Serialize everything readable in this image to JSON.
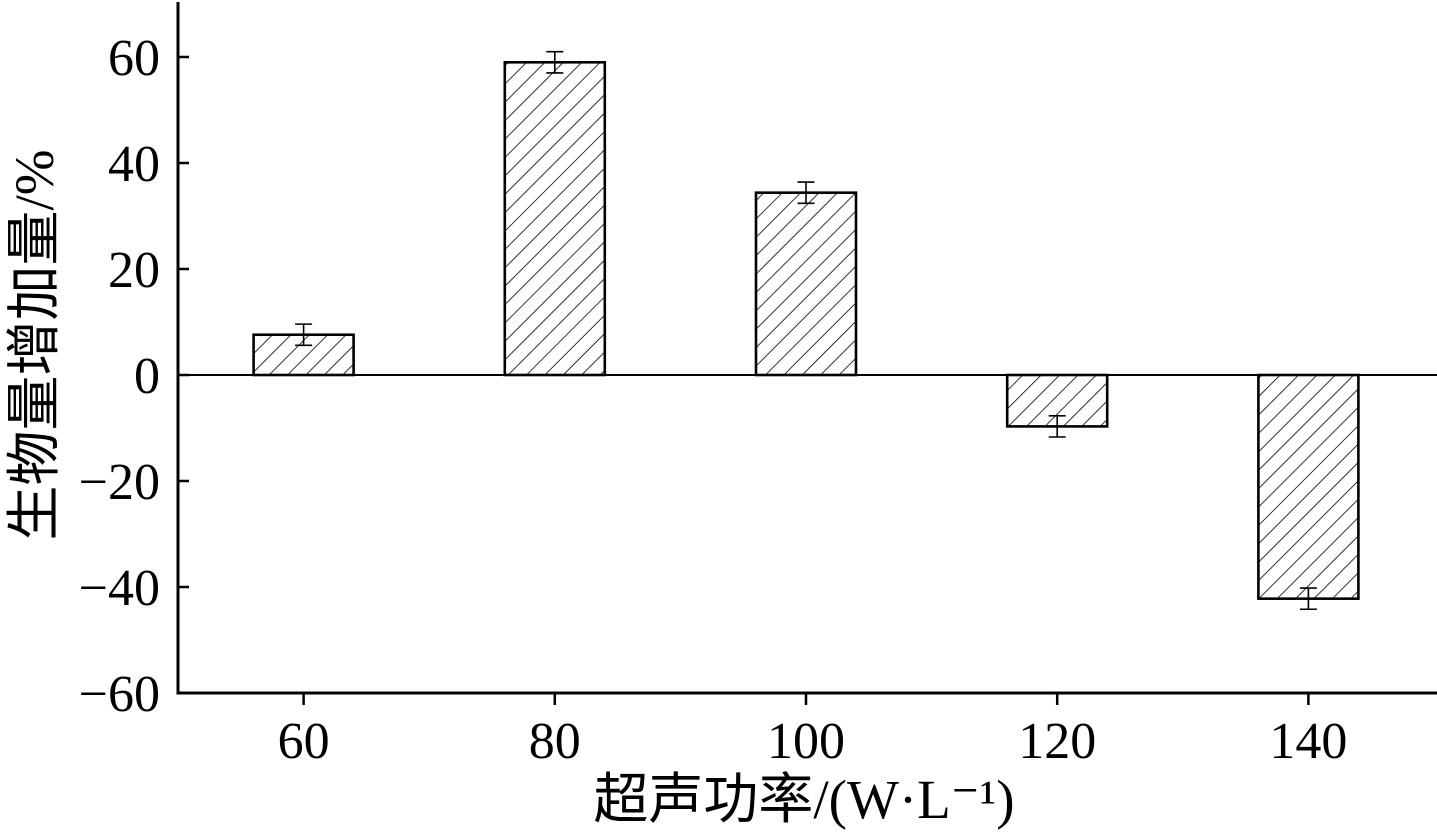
{
  "chart_data": {
    "type": "bar",
    "xlabel": "超声功率/(W·L⁻¹)",
    "ylabel": "生物量增加量/%",
    "categories": [
      "60",
      "80",
      "100",
      "120",
      "140"
    ],
    "values": [
      7.6,
      59.0,
      34.4,
      -9.7,
      -42.2
    ],
    "error": [
      2.0,
      2.0,
      2.0,
      2.0,
      2.0
    ],
    "xlim": [
      50,
      150
    ],
    "ylim": [
      -60,
      70
    ],
    "y_ticks": [
      "60",
      "40",
      "20",
      "0",
      "−20",
      "−40",
      "−60"
    ],
    "grid": false,
    "bar_pattern": "diagonal-hatch",
    "colors": {
      "bar_stroke": "#000000",
      "hatch": "#000000",
      "background": "#ffffff"
    }
  }
}
